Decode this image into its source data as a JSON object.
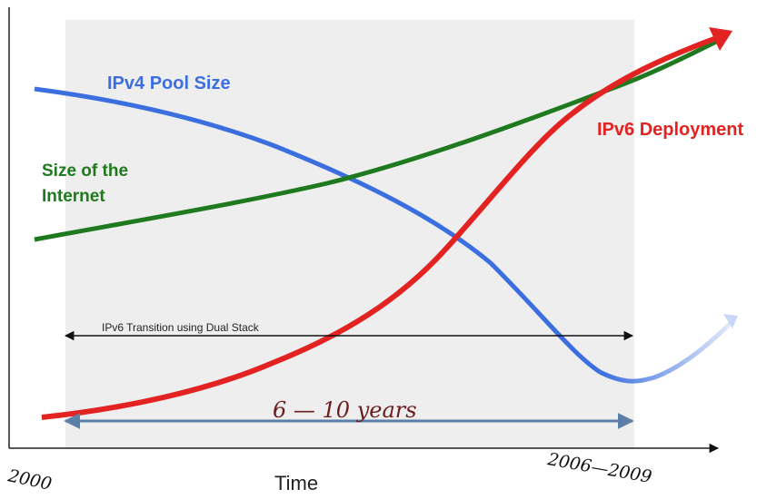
{
  "labels": {
    "ipv4_pool": "IPv4 Pool Size",
    "internet_line1": "Size of the",
    "internet_line2": "Internet",
    "ipv6_deployment": "IPv6 Deployment",
    "transition": "IPv6 Transition using Dual Stack",
    "duration": "6 — 10 years",
    "x_axis": "Time",
    "x_start": "2000",
    "x_end": "2006—2009"
  },
  "colors": {
    "ipv4": "#3b6fe0",
    "internet": "#1f7a1f",
    "ipv6": "#e32222",
    "shade": "#eeeeee",
    "duration_arrow": "#5b7fa8"
  }
}
